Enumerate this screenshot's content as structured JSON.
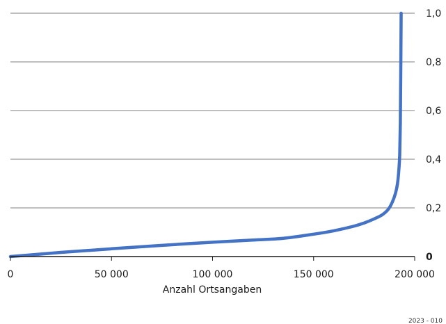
{
  "chart_data": {
    "type": "line",
    "title": "",
    "xlabel": "Anzahl Ortsangaben",
    "ylabel": "",
    "xlim": [
      0,
      200000
    ],
    "ylim": [
      0,
      1.0
    ],
    "x_ticks": [
      0,
      50000,
      100000,
      150000,
      200000
    ],
    "x_tick_labels": [
      "0",
      "50 000",
      "100 000",
      "150 000",
      "200 000"
    ],
    "y_ticks": [
      0,
      0.2,
      0.4,
      0.6,
      0.8,
      1.0
    ],
    "y_tick_labels": [
      "0",
      "0,2",
      "0,4",
      "0,6",
      "0,8",
      "1,0"
    ],
    "y_axis_position": "right",
    "grid": "horizontal",
    "series": [
      {
        "color": "#4472c4",
        "x": [
          0,
          25000,
          50000,
          75000,
          100000,
          120000,
          135000,
          150000,
          160000,
          170000,
          175000,
          180000,
          184000,
          187000,
          189000,
          190500,
          191500,
          192200,
          192600,
          192900,
          193100,
          193300
        ],
        "y": [
          0.0,
          0.017,
          0.032,
          0.046,
          0.059,
          0.068,
          0.075,
          0.092,
          0.106,
          0.125,
          0.138,
          0.155,
          0.172,
          0.195,
          0.225,
          0.26,
          0.3,
          0.36,
          0.42,
          0.55,
          0.75,
          1.0
        ]
      }
    ],
    "footnote": "2023 - 010"
  }
}
